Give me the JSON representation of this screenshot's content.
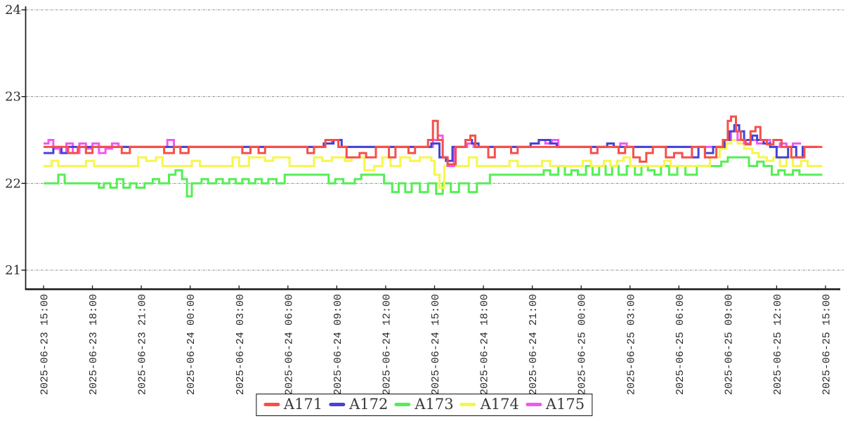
{
  "chart_data": {
    "type": "line",
    "title": "",
    "xlabel": "",
    "ylabel": "",
    "line_style": "step-after",
    "grid": "horizontal dash-dot",
    "grid_color": "#888888",
    "axis_color": "#1a1a1a",
    "text_color": "#2b2b2b",
    "legend_position": "bottom-center",
    "y_ticks": [
      24,
      23,
      22,
      21
    ],
    "ylim": [
      20.78,
      24.05
    ],
    "x_range_hours": [
      0,
      48
    ],
    "x_tick_interval_hours": 3,
    "x_tick_labels": [
      "2025-06-23 15:00",
      "2025-06-23 18:00",
      "2025-06-23 21:00",
      "2025-06-24 00:00",
      "2025-06-24 03:00",
      "2025-06-24 06:00",
      "2025-06-24 09:00",
      "2025-06-24 12:00",
      "2025-06-24 15:00",
      "2025-06-24 18:00",
      "2025-06-24 21:00",
      "2025-06-25 00:00",
      "2025-06-25 03:00",
      "2025-06-25 06:00",
      "2025-06-25 09:00",
      "2025-06-25 12:00",
      "2025-06-25 15:00"
    ],
    "series": [
      {
        "name": "A171",
        "color": "#f4504b",
        "end": 47.8,
        "points": [
          [
            0,
            22.42
          ],
          [
            1.5,
            22.35
          ],
          [
            2.1,
            22.42
          ],
          [
            2.6,
            22.35
          ],
          [
            3.0,
            22.42
          ],
          [
            4.8,
            22.35
          ],
          [
            5.3,
            22.42
          ],
          [
            7.4,
            22.35
          ],
          [
            8.0,
            22.42
          ],
          [
            8.4,
            22.35
          ],
          [
            8.9,
            22.42
          ],
          [
            12.2,
            22.35
          ],
          [
            12.7,
            22.42
          ],
          [
            13.2,
            22.35
          ],
          [
            13.6,
            22.42
          ],
          [
            16.2,
            22.35
          ],
          [
            16.6,
            22.42
          ],
          [
            17.3,
            22.5
          ],
          [
            18.1,
            22.42
          ],
          [
            18.6,
            22.3
          ],
          [
            19.4,
            22.35
          ],
          [
            19.8,
            22.3
          ],
          [
            20.4,
            22.42
          ],
          [
            21.2,
            22.3
          ],
          [
            21.6,
            22.42
          ],
          [
            22.4,
            22.35
          ],
          [
            22.8,
            22.42
          ],
          [
            23.6,
            22.5
          ],
          [
            23.9,
            22.72
          ],
          [
            24.2,
            22.5
          ],
          [
            24.5,
            22.3
          ],
          [
            24.8,
            22.22
          ],
          [
            25.3,
            22.42
          ],
          [
            25.9,
            22.5
          ],
          [
            26.2,
            22.55
          ],
          [
            26.5,
            22.42
          ],
          [
            27.3,
            22.3
          ],
          [
            27.7,
            22.42
          ],
          [
            28.7,
            22.35
          ],
          [
            29.1,
            22.42
          ],
          [
            33.6,
            22.35
          ],
          [
            34.0,
            22.42
          ],
          [
            35.3,
            22.35
          ],
          [
            35.7,
            22.42
          ],
          [
            36.2,
            22.3
          ],
          [
            36.6,
            22.25
          ],
          [
            37.0,
            22.35
          ],
          [
            37.4,
            22.42
          ],
          [
            38.2,
            22.3
          ],
          [
            38.7,
            22.35
          ],
          [
            39.2,
            22.3
          ],
          [
            39.8,
            22.42
          ],
          [
            40.6,
            22.3
          ],
          [
            41.3,
            22.42
          ],
          [
            41.7,
            22.5
          ],
          [
            42.0,
            22.72
          ],
          [
            42.2,
            22.77
          ],
          [
            42.5,
            22.6
          ],
          [
            42.8,
            22.5
          ],
          [
            43.1,
            22.45
          ],
          [
            43.4,
            22.6
          ],
          [
            43.7,
            22.65
          ],
          [
            44.0,
            22.5
          ],
          [
            44.4,
            22.45
          ],
          [
            44.8,
            22.5
          ],
          [
            45.3,
            22.42
          ],
          [
            45.9,
            22.3
          ],
          [
            46.7,
            22.42
          ]
        ]
      },
      {
        "name": "A172",
        "color": "#4643d4",
        "end": 47.5,
        "points": [
          [
            0,
            22.35
          ],
          [
            0.6,
            22.42
          ],
          [
            1.1,
            22.35
          ],
          [
            1.5,
            22.42
          ],
          [
            17.2,
            22.46
          ],
          [
            17.8,
            22.5
          ],
          [
            18.3,
            22.42
          ],
          [
            23.8,
            22.46
          ],
          [
            24.3,
            22.3
          ],
          [
            24.7,
            22.26
          ],
          [
            25.1,
            22.42
          ],
          [
            25.9,
            22.5
          ],
          [
            26.3,
            22.46
          ],
          [
            26.7,
            22.42
          ],
          [
            29.9,
            22.46
          ],
          [
            30.4,
            22.5
          ],
          [
            31.1,
            22.46
          ],
          [
            31.5,
            22.42
          ],
          [
            34.6,
            22.46
          ],
          [
            35.0,
            22.42
          ],
          [
            39.8,
            22.3
          ],
          [
            40.2,
            22.42
          ],
          [
            40.6,
            22.35
          ],
          [
            41.1,
            22.42
          ],
          [
            41.8,
            22.5
          ],
          [
            42.1,
            22.6
          ],
          [
            42.4,
            22.67
          ],
          [
            42.7,
            22.6
          ],
          [
            43.0,
            22.5
          ],
          [
            43.5,
            22.55
          ],
          [
            43.8,
            22.5
          ],
          [
            44.2,
            22.46
          ],
          [
            44.6,
            22.42
          ],
          [
            45.0,
            22.3
          ],
          [
            45.7,
            22.42
          ],
          [
            46.2,
            22.3
          ],
          [
            46.6,
            22.42
          ]
        ]
      },
      {
        "name": "A173",
        "color": "#55ee55",
        "end": 47.8,
        "points": [
          [
            0,
            22.0
          ],
          [
            0.9,
            22.1
          ],
          [
            1.3,
            22.0
          ],
          [
            3.4,
            21.95
          ],
          [
            3.7,
            22.0
          ],
          [
            4.1,
            21.95
          ],
          [
            4.5,
            22.05
          ],
          [
            4.9,
            21.95
          ],
          [
            5.3,
            22.0
          ],
          [
            5.7,
            21.95
          ],
          [
            6.2,
            22.0
          ],
          [
            6.7,
            22.05
          ],
          [
            7.1,
            22.0
          ],
          [
            7.7,
            22.1
          ],
          [
            8.1,
            22.15
          ],
          [
            8.5,
            22.05
          ],
          [
            8.8,
            21.85
          ],
          [
            9.1,
            22.0
          ],
          [
            9.7,
            22.05
          ],
          [
            10.1,
            22.0
          ],
          [
            10.6,
            22.05
          ],
          [
            11.0,
            22.0
          ],
          [
            11.4,
            22.05
          ],
          [
            11.8,
            22.0
          ],
          [
            12.2,
            22.05
          ],
          [
            12.6,
            22.0
          ],
          [
            13.0,
            22.05
          ],
          [
            13.4,
            22.0
          ],
          [
            13.8,
            22.05
          ],
          [
            14.3,
            22.0
          ],
          [
            14.8,
            22.1
          ],
          [
            17.5,
            22.0
          ],
          [
            17.9,
            22.05
          ],
          [
            18.4,
            22.0
          ],
          [
            19.1,
            22.05
          ],
          [
            19.5,
            22.1
          ],
          [
            20.9,
            22.0
          ],
          [
            21.4,
            21.9
          ],
          [
            21.8,
            22.0
          ],
          [
            22.2,
            21.9
          ],
          [
            22.6,
            22.0
          ],
          [
            23.1,
            21.9
          ],
          [
            23.6,
            22.0
          ],
          [
            24.1,
            21.88
          ],
          [
            24.5,
            22.0
          ],
          [
            25.0,
            21.9
          ],
          [
            25.5,
            22.0
          ],
          [
            26.1,
            21.9
          ],
          [
            26.6,
            22.0
          ],
          [
            27.4,
            22.1
          ],
          [
            30.1,
            22.1
          ],
          [
            30.7,
            22.15
          ],
          [
            31.1,
            22.1
          ],
          [
            31.6,
            22.2
          ],
          [
            32.0,
            22.1
          ],
          [
            32.4,
            22.15
          ],
          [
            32.8,
            22.1
          ],
          [
            33.3,
            22.2
          ],
          [
            33.7,
            22.1
          ],
          [
            34.1,
            22.2
          ],
          [
            34.5,
            22.1
          ],
          [
            34.9,
            22.2
          ],
          [
            35.3,
            22.1
          ],
          [
            35.8,
            22.2
          ],
          [
            36.3,
            22.1
          ],
          [
            36.7,
            22.2
          ],
          [
            37.1,
            22.15
          ],
          [
            37.5,
            22.1
          ],
          [
            37.9,
            22.2
          ],
          [
            38.4,
            22.1
          ],
          [
            38.9,
            22.2
          ],
          [
            39.4,
            22.1
          ],
          [
            40.1,
            22.2
          ],
          [
            41.6,
            22.25
          ],
          [
            42.0,
            22.3
          ],
          [
            43.3,
            22.2
          ],
          [
            43.8,
            22.25
          ],
          [
            44.2,
            22.2
          ],
          [
            44.7,
            22.1
          ],
          [
            45.1,
            22.15
          ],
          [
            45.5,
            22.1
          ],
          [
            46.0,
            22.15
          ],
          [
            46.4,
            22.1
          ]
        ]
      },
      {
        "name": "A174",
        "color": "#f6f64c",
        "end": 47.8,
        "points": [
          [
            0,
            22.2
          ],
          [
            0.5,
            22.26
          ],
          [
            0.9,
            22.2
          ],
          [
            2.6,
            22.26
          ],
          [
            3.1,
            22.2
          ],
          [
            5.8,
            22.3
          ],
          [
            6.3,
            22.26
          ],
          [
            6.9,
            22.3
          ],
          [
            7.3,
            22.2
          ],
          [
            9.1,
            22.26
          ],
          [
            9.6,
            22.2
          ],
          [
            11.6,
            22.3
          ],
          [
            12.0,
            22.2
          ],
          [
            12.6,
            22.3
          ],
          [
            13.6,
            22.26
          ],
          [
            14.1,
            22.3
          ],
          [
            15.1,
            22.2
          ],
          [
            16.6,
            22.3
          ],
          [
            17.1,
            22.26
          ],
          [
            17.7,
            22.3
          ],
          [
            18.5,
            22.26
          ],
          [
            18.9,
            22.3
          ],
          [
            19.7,
            22.15
          ],
          [
            20.3,
            22.2
          ],
          [
            20.8,
            22.3
          ],
          [
            21.3,
            22.2
          ],
          [
            21.9,
            22.3
          ],
          [
            22.5,
            22.26
          ],
          [
            23.1,
            22.3
          ],
          [
            23.8,
            22.26
          ],
          [
            24.0,
            22.1
          ],
          [
            24.3,
            21.95
          ],
          [
            24.6,
            22.2
          ],
          [
            26.1,
            22.3
          ],
          [
            26.6,
            22.2
          ],
          [
            28.6,
            22.26
          ],
          [
            29.1,
            22.2
          ],
          [
            30.6,
            22.26
          ],
          [
            31.1,
            22.2
          ],
          [
            33.1,
            22.26
          ],
          [
            33.6,
            22.2
          ],
          [
            34.4,
            22.26
          ],
          [
            34.8,
            22.2
          ],
          [
            35.2,
            22.26
          ],
          [
            35.6,
            22.3
          ],
          [
            36.0,
            22.2
          ],
          [
            38.1,
            22.26
          ],
          [
            38.5,
            22.2
          ],
          [
            40.9,
            22.3
          ],
          [
            41.5,
            22.4
          ],
          [
            41.9,
            22.46
          ],
          [
            42.2,
            22.5
          ],
          [
            42.6,
            22.46
          ],
          [
            43.0,
            22.4
          ],
          [
            43.5,
            22.35
          ],
          [
            43.9,
            22.3
          ],
          [
            44.4,
            22.26
          ],
          [
            44.8,
            22.3
          ],
          [
            45.2,
            22.2
          ],
          [
            45.6,
            22.3
          ],
          [
            46.0,
            22.2
          ],
          [
            46.5,
            22.26
          ],
          [
            46.9,
            22.2
          ]
        ]
      },
      {
        "name": "A175",
        "color": "#f357f3",
        "end": 46.5,
        "points": [
          [
            0,
            22.46
          ],
          [
            0.3,
            22.5
          ],
          [
            0.6,
            22.4
          ],
          [
            1.0,
            22.35
          ],
          [
            1.4,
            22.46
          ],
          [
            1.8,
            22.35
          ],
          [
            2.2,
            22.46
          ],
          [
            2.6,
            22.4
          ],
          [
            3.0,
            22.46
          ],
          [
            3.4,
            22.35
          ],
          [
            3.8,
            22.4
          ],
          [
            4.2,
            22.46
          ],
          [
            4.6,
            22.42
          ],
          [
            7.6,
            22.5
          ],
          [
            8.0,
            22.42
          ],
          [
            17.3,
            22.46
          ],
          [
            17.7,
            22.5
          ],
          [
            18.1,
            22.42
          ],
          [
            23.9,
            22.5
          ],
          [
            24.2,
            22.55
          ],
          [
            24.5,
            22.3
          ],
          [
            24.8,
            22.2
          ],
          [
            25.2,
            22.42
          ],
          [
            26.0,
            22.46
          ],
          [
            26.4,
            22.42
          ],
          [
            29.9,
            22.46
          ],
          [
            30.4,
            22.5
          ],
          [
            30.8,
            22.46
          ],
          [
            31.2,
            22.5
          ],
          [
            31.6,
            22.42
          ],
          [
            34.6,
            22.46
          ],
          [
            35.0,
            22.42
          ],
          [
            35.4,
            22.46
          ],
          [
            35.8,
            22.42
          ],
          [
            41.8,
            22.5
          ],
          [
            42.2,
            22.6
          ],
          [
            42.6,
            22.5
          ],
          [
            43.0,
            22.46
          ],
          [
            43.4,
            22.5
          ],
          [
            43.8,
            22.46
          ],
          [
            44.2,
            22.5
          ],
          [
            44.6,
            22.42
          ],
          [
            45.2,
            22.46
          ],
          [
            45.6,
            22.42
          ],
          [
            46.0,
            22.46
          ]
        ]
      }
    ]
  }
}
